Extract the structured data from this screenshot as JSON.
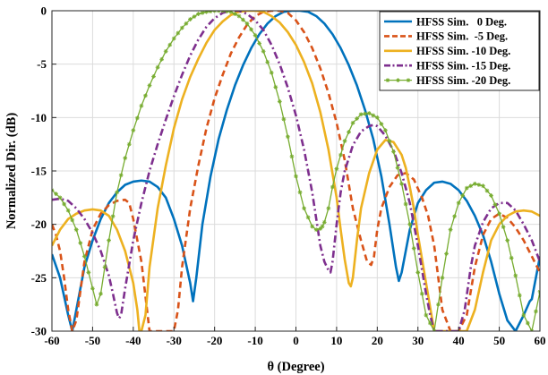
{
  "chart_data": {
    "type": "line",
    "title": "",
    "xlabel": "θ (Degree)",
    "ylabel": "Normalized Dir. (dB)",
    "xlim": [
      -60,
      60
    ],
    "ylim": [
      -30,
      0
    ],
    "xticks": [
      -60,
      -50,
      -40,
      -30,
      -20,
      -10,
      0,
      10,
      20,
      30,
      40,
      50,
      60
    ],
    "yticks": [
      0,
      -5,
      -10,
      -15,
      -20,
      -25,
      -30
    ],
    "grid": true,
    "legend_position": "top-right",
    "series": [
      {
        "name": "HFSS Sim.   0 Deg.",
        "color": "#0072BD",
        "dash": "solid",
        "marker": "none",
        "x": [
          -60,
          -58,
          -56,
          -55,
          -54,
          -52,
          -50,
          -48,
          -46,
          -44,
          -42,
          -40,
          -38,
          -36,
          -34,
          -32,
          -30,
          -28,
          -26,
          -25.3,
          -24.5,
          -23,
          -21,
          -19,
          -17,
          -15,
          -13,
          -11,
          -9,
          -7,
          -5,
          -3,
          -1,
          0,
          1,
          3,
          5,
          7,
          9,
          11,
          13,
          15,
          17,
          19,
          21,
          23,
          24.6,
          25.3,
          26,
          28,
          30,
          32,
          34,
          36,
          38,
          40,
          42,
          44,
          46,
          48,
          50,
          52,
          54,
          56,
          57.5,
          58,
          59,
          60
        ],
        "y": [
          -22.8,
          -25,
          -28.5,
          -30,
          -28,
          -24,
          -21.5,
          -19.5,
          -18,
          -17,
          -16.3,
          -16,
          -15.9,
          -16,
          -16.5,
          -17.5,
          -19.5,
          -22,
          -25.5,
          -27.2,
          -25,
          -20,
          -15.5,
          -12,
          -9.3,
          -7,
          -5.1,
          -3.5,
          -2.2,
          -1.2,
          -0.5,
          -0.1,
          0,
          0,
          0,
          -0.1,
          -0.5,
          -1.2,
          -2.2,
          -3.5,
          -5.1,
          -7,
          -9.3,
          -12,
          -15.5,
          -20,
          -24,
          -25.3,
          -24.5,
          -20.5,
          -18,
          -16.8,
          -16.1,
          -16,
          -16.2,
          -16.8,
          -17.8,
          -19.2,
          -21,
          -23.5,
          -26.5,
          -29,
          -30,
          -28.5,
          -27.2,
          -27,
          -25,
          -23
        ]
      },
      {
        "name": "HFSS Sim.  -5 Deg.",
        "color": "#D95319",
        "dash": "dashed",
        "marker": "none",
        "x": [
          -60,
          -59,
          -58,
          -57,
          -56,
          -55,
          -54,
          -52,
          -50,
          -48,
          -46,
          -44,
          -42,
          -41,
          -40,
          -38,
          -36,
          -34,
          -32,
          -31,
          -30,
          -29,
          -28,
          -26,
          -24,
          -22,
          -20,
          -18,
          -16,
          -14,
          -12,
          -10,
          -8,
          -6,
          -5,
          -4,
          -2,
          0,
          2,
          4,
          6,
          8,
          10,
          12,
          14,
          16,
          17.5,
          18.5,
          19.2,
          20,
          21,
          23,
          25,
          27,
          29,
          31,
          32.5,
          34,
          35,
          36,
          38,
          40,
          42,
          44,
          46,
          48,
          50,
          52,
          54,
          56,
          58,
          60
        ],
        "y": [
          -20,
          -21,
          -22.5,
          -25,
          -28,
          -30,
          -29,
          -23.5,
          -20.5,
          -19,
          -18.2,
          -17.8,
          -17.7,
          -18,
          -19.5,
          -23.5,
          -30,
          -30,
          -30,
          -30,
          -30,
          -28,
          -24,
          -18.5,
          -14.5,
          -11,
          -8.2,
          -6,
          -4,
          -2.5,
          -1.3,
          -0.5,
          -0.1,
          0,
          0,
          0,
          -0.2,
          -0.9,
          -2,
          -3.5,
          -5.4,
          -7.7,
          -10.5,
          -14,
          -18.5,
          -21.5,
          -23.5,
          -23.8,
          -23,
          -20.5,
          -18.5,
          -16.5,
          -15.4,
          -15.2,
          -15.8,
          -17.5,
          -19.2,
          -22,
          -25,
          -28,
          -30,
          -30,
          -28.5,
          -24,
          -21,
          -19.5,
          -19,
          -19.4,
          -20.3,
          -21.5,
          -23,
          -24.5
        ]
      },
      {
        "name": "HFSS Sim. -10 Deg.",
        "color": "#EDB120",
        "dash": "solid",
        "marker": "none",
        "x": [
          -60,
          -58,
          -56,
          -54,
          -52,
          -50,
          -48,
          -46,
          -44,
          -42,
          -40,
          -39,
          -38.5,
          -38,
          -37,
          -36,
          -34,
          -32,
          -30,
          -28,
          -26,
          -24,
          -22,
          -20,
          -18,
          -16,
          -14,
          -12,
          -10,
          -8,
          -6,
          -4,
          -2,
          0,
          2,
          4,
          6,
          8,
          10,
          11,
          12,
          13,
          13.5,
          14,
          15,
          16,
          18,
          20,
          22,
          24,
          26,
          27,
          28,
          29,
          30,
          32,
          34,
          36,
          38,
          40,
          42,
          44,
          46,
          48,
          50,
          52,
          54,
          56,
          58,
          60
        ],
        "y": [
          -22,
          -20.5,
          -19.5,
          -19,
          -18.7,
          -18.6,
          -18.7,
          -19.2,
          -20.5,
          -22.5,
          -25.5,
          -28,
          -30,
          -30,
          -28.5,
          -24,
          -18.5,
          -14.5,
          -11,
          -8.3,
          -6.2,
          -4.5,
          -3,
          -1.8,
          -1,
          -0.4,
          -0.1,
          0,
          0,
          -0.1,
          -0.5,
          -1.1,
          -2,
          -3.2,
          -4.8,
          -6.8,
          -9.5,
          -13,
          -17.5,
          -20.5,
          -23.3,
          -25.5,
          -25.8,
          -25,
          -21.5,
          -18.5,
          -15.2,
          -13,
          -12.1,
          -12.3,
          -13.5,
          -14.7,
          -16.5,
          -18.5,
          -21,
          -25.5,
          -30,
          -30,
          -30,
          -30,
          -30,
          -28,
          -24.5,
          -21.5,
          -20,
          -19.2,
          -18.8,
          -18.7,
          -18.8,
          -19.2
        ]
      },
      {
        "name": "HFSS Sim. -15 Deg.",
        "color": "#7E2F8E",
        "dash": "dashdot",
        "marker": "none",
        "x": [
          -60,
          -58,
          -56,
          -54,
          -52,
          -50,
          -48,
          -46,
          -45,
          -44,
          -43.5,
          -43,
          -42,
          -40,
          -38,
          -36,
          -34,
          -32,
          -30,
          -28,
          -26,
          -24,
          -22,
          -20,
          -18,
          -16,
          -15,
          -14,
          -12,
          -10,
          -8,
          -6,
          -4,
          -2,
          0,
          2,
          4,
          5,
          6,
          7,
          8,
          8.5,
          9,
          10,
          11,
          12,
          14,
          16,
          18,
          19,
          20,
          22,
          24,
          26,
          28,
          30,
          32,
          33,
          34,
          36,
          38,
          40,
          41.5,
          43,
          44,
          46,
          48,
          50,
          52,
          54,
          56,
          58,
          60
        ],
        "y": [
          -17.7,
          -17.6,
          -17.8,
          -18.5,
          -19.5,
          -20.8,
          -22.5,
          -24.8,
          -26.5,
          -28.3,
          -28.8,
          -28.5,
          -26,
          -21.5,
          -18,
          -15,
          -12.5,
          -10.2,
          -8,
          -6,
          -4.2,
          -2.7,
          -1.5,
          -0.7,
          -0.2,
          0,
          0,
          0,
          -0.3,
          -0.9,
          -1.8,
          -3.2,
          -5,
          -7.2,
          -9.8,
          -13,
          -17,
          -19.5,
          -22,
          -23.5,
          -24.3,
          -24.5,
          -23.5,
          -20,
          -17,
          -15,
          -12.6,
          -11.3,
          -10.8,
          -10.7,
          -10.8,
          -11.7,
          -13.1,
          -15.2,
          -18,
          -22,
          -26.5,
          -28.5,
          -30,
          -30,
          -30,
          -30,
          -28,
          -24,
          -22,
          -19.8,
          -18.5,
          -18,
          -18,
          -18.7,
          -20,
          -21.5,
          -23.5
        ]
      },
      {
        "name": "HFSS Sim. -20 Deg.",
        "color": "#77AC30",
        "dash": "solid",
        "marker": "star",
        "x": [
          -60,
          -58,
          -56,
          -54,
          -52,
          -50,
          -49,
          -48,
          -46,
          -44,
          -42,
          -40,
          -38,
          -36,
          -34,
          -32,
          -30,
          -28,
          -26,
          -24,
          -22,
          -20,
          -18,
          -16,
          -14,
          -12,
          -10,
          -8,
          -6,
          -4,
          -2,
          0,
          2,
          4,
          5,
          6,
          6.5,
          7,
          8,
          9,
          10,
          12,
          14,
          16,
          18,
          20,
          22,
          24,
          26,
          28,
          30,
          32,
          34,
          36,
          38,
          40,
          42,
          44,
          46,
          48,
          50,
          52,
          54,
          56,
          58,
          60
        ],
        "y": [
          -16.8,
          -17.5,
          -18.7,
          -20.5,
          -23,
          -26,
          -27.5,
          -26.5,
          -21.5,
          -17,
          -13.8,
          -11.2,
          -8.9,
          -7,
          -5.3,
          -3.8,
          -2.6,
          -1.6,
          -0.8,
          -0.3,
          -0.1,
          0,
          0,
          -0.1,
          -0.5,
          -1.2,
          -2.3,
          -3.8,
          -5.8,
          -8.5,
          -11.8,
          -15.5,
          -18.5,
          -20.2,
          -20.5,
          -20.4,
          -20.2,
          -19.8,
          -18.5,
          -16.5,
          -14.8,
          -12.2,
          -10.5,
          -9.7,
          -9.6,
          -10,
          -11.2,
          -13.2,
          -16.2,
          -20,
          -24.5,
          -28.5,
          -30,
          -25,
          -20.5,
          -18,
          -16.6,
          -16.2,
          -16.4,
          -17.3,
          -19,
          -21.5,
          -24.8,
          -28.5,
          -30,
          -26.3
        ]
      }
    ]
  }
}
